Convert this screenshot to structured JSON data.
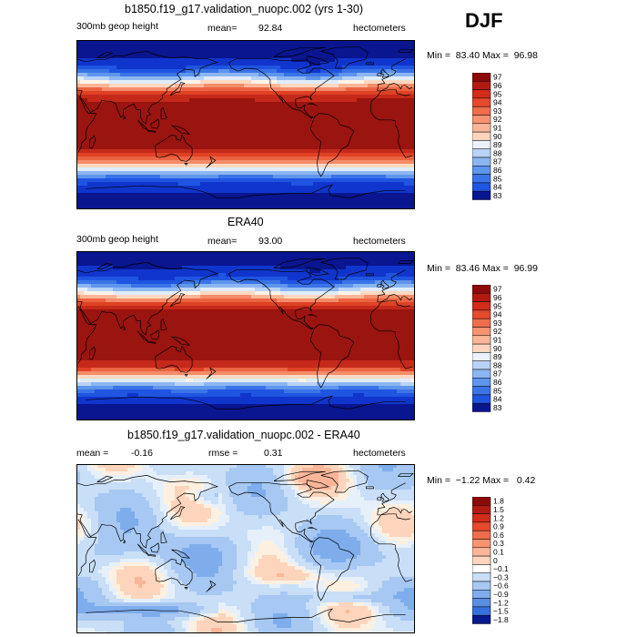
{
  "season": "DJF",
  "colors": {
    "warm": [
      "#FEF0E0",
      "#FDD5BC",
      "#FBB699",
      "#F59373",
      "#EE6D4C",
      "#E44A2E",
      "#D22C1A",
      "#B31B12",
      "#8C0A0A"
    ],
    "cool": [
      "#E6F0FB",
      "#C9DEF7",
      "#A6C8F2",
      "#7FADEC",
      "#5A8EE4",
      "#3770DC",
      "#1E52D0",
      "#0F36B8",
      "#08198E"
    ],
    "zero": "#FFFFFF",
    "raw_scale": [
      "#0A1590",
      "#1035CC",
      "#1F55E0",
      "#3B74E6",
      "#5F95EC",
      "#8CB6F1",
      "#B9D3F6",
      "#E1ECFA",
      "#FEF4E8",
      "#FDD9C2",
      "#FBB697",
      "#F48C69",
      "#EB6442",
      "#DE4224",
      "#C4291A",
      "#9A1410"
    ]
  },
  "chart_data": [
    {
      "type": "heatmap",
      "title": "b1850.f19_g17.validation_nuopc.002 (yrs 1-30)",
      "field": "300mb geop height",
      "mean_label": "mean=",
      "mean": "92.84",
      "units": "hectometers",
      "stats": "Min =  83.40 Max =  96.98",
      "min": 83.4,
      "max": 96.98,
      "colorbar_labels": [
        "97",
        "96",
        "95",
        "94",
        "93",
        "92",
        "91",
        "90",
        "89",
        "88",
        "87",
        "86",
        "85",
        "84",
        "83"
      ]
    },
    {
      "type": "heatmap",
      "title": "ERA40",
      "field": "300mb geop height",
      "mean_label": "mean=",
      "mean": "93.00",
      "units": "hectometers",
      "stats": "Min =  83.46 Max =  96.99",
      "min": 83.46,
      "max": 96.99,
      "colorbar_labels": [
        "97",
        "96",
        "95",
        "94",
        "93",
        "92",
        "91",
        "90",
        "89",
        "88",
        "87",
        "86",
        "85",
        "84",
        "83"
      ]
    },
    {
      "type": "heatmap",
      "title": "b1850.f19_g17.validation_nuopc.002 - ERA40",
      "field": "mean =",
      "mean": "-0.16",
      "rmse_label": "rmse =",
      "rmse": "0.31",
      "units": "hectometers",
      "stats": "Min =  −1.22 Max =   0.42",
      "min": -1.22,
      "max": 0.42,
      "colorbar_labels": [
        "1.8",
        "1.5",
        "1.2",
        "0.9",
        "0.6",
        "0.3",
        "0.1",
        "0",
        "−0.1",
        "−0.3",
        "−0.6",
        "−0.9",
        "−1.2",
        "−1.5",
        "−1.8"
      ]
    }
  ]
}
